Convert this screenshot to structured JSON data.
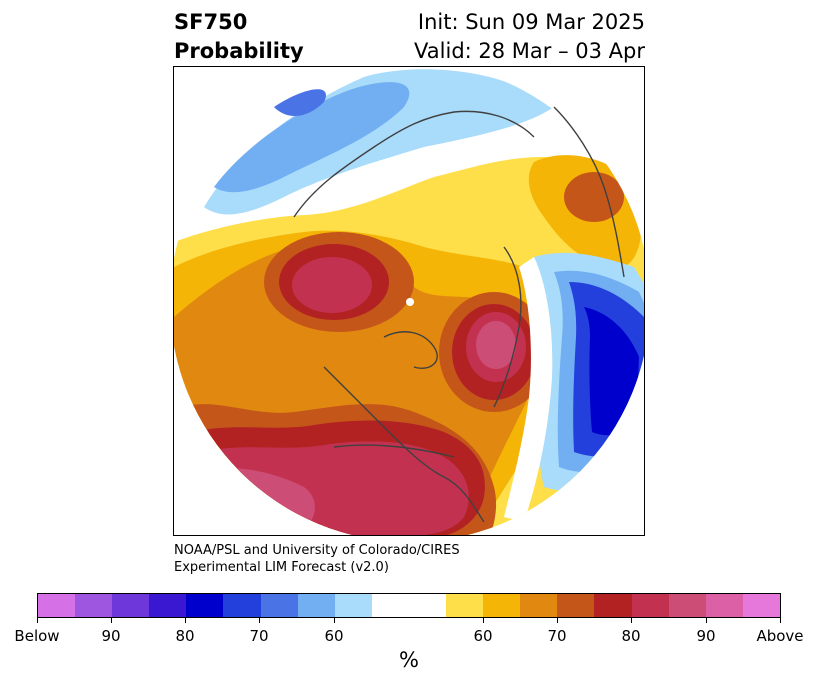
{
  "title": {
    "variable": "SF750",
    "product": "Probability",
    "init": "Init: Sun 09 Mar 2025",
    "valid": "Valid: 28 Mar – 03 Apr"
  },
  "credit": {
    "line1": "NOAA/PSL and University of Colorado/CIRES",
    "line2": "Experimental LIM Forecast (v2.0)"
  },
  "colorbar": {
    "unit": "%",
    "colors": [
      "#d670e6",
      "#9e55df",
      "#6e37d9",
      "#3a17d1",
      "#0000cd",
      "#2440dc",
      "#4a73e6",
      "#72aff2",
      "#a9dbfb",
      "#ffffff",
      "#ffffff",
      "#fedf4a",
      "#f4b506",
      "#e08810",
      "#c5561a",
      "#b22222",
      "#c23250",
      "#cc4e76",
      "#dc60a6",
      "#e678dc"
    ],
    "tick_labels": [
      "Below",
      "90",
      "80",
      "70",
      "60",
      "60",
      "70",
      "80",
      "90",
      "Above"
    ]
  }
}
